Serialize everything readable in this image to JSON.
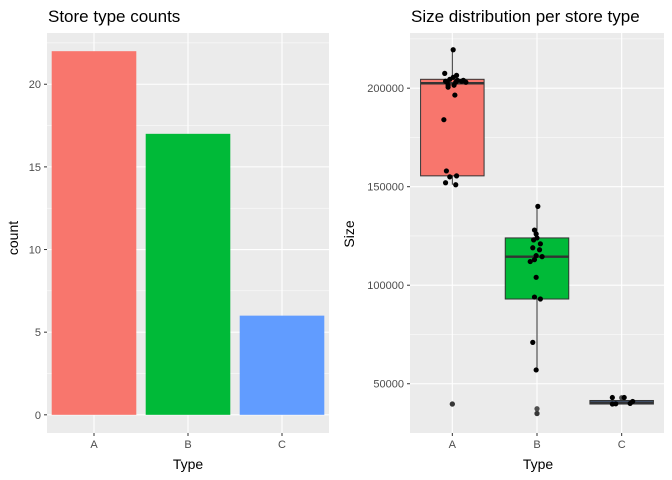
{
  "chart_data": [
    {
      "type": "bar",
      "title": "Store type counts",
      "xlabel": "Type",
      "ylabel": "count",
      "categories": [
        "A",
        "B",
        "C"
      ],
      "values": [
        22,
        17,
        6
      ],
      "colors": [
        "#F8766D",
        "#00BA38",
        "#619CFF"
      ],
      "ylim": [
        -1.1,
        23.1
      ],
      "yticks": [
        0,
        5,
        10,
        15,
        20
      ],
      "ytick_labels": [
        "0",
        "5",
        "10",
        "15",
        "20"
      ],
      "grid": true,
      "legend": "none"
    },
    {
      "type": "box",
      "title": "Size distribution per store type",
      "xlabel": "Type",
      "ylabel": "Size",
      "categories": [
        "A",
        "B",
        "C"
      ],
      "colors": [
        "#F8766D",
        "#00BA38",
        "#619CFF"
      ],
      "ylim": [
        25000,
        228000
      ],
      "yticks": [
        50000,
        100000,
        150000,
        200000
      ],
      "ytick_labels": [
        "50000",
        "100000",
        "150000",
        "200000"
      ],
      "grid": true,
      "legend": "none",
      "boxes": [
        {
          "category": "A",
          "q1": 155500,
          "median": 202500,
          "q3": 204500,
          "whisker_low": 151000,
          "whisker_high": 219500
        },
        {
          "category": "B",
          "q1": 93000,
          "median": 114500,
          "q3": 124000,
          "whisker_low": 57000,
          "whisker_high": 140000
        },
        {
          "category": "C",
          "q1": 39700,
          "median": 40500,
          "q3": 41500,
          "whisker_low": 39700,
          "whisker_high": 41500
        }
      ],
      "outliers": [
        {
          "category": "A",
          "values": [
            39700,
            39700
          ]
        },
        {
          "category": "B",
          "values": [
            34900,
            34900,
            37300
          ]
        },
        {
          "category": "C",
          "values": [
            42900
          ]
        }
      ],
      "points": [
        {
          "category": "A",
          "jitter": [
            0.01,
            -0.09,
            0.05,
            0.13,
            0.01,
            -0.03,
            0.06,
            -0.08,
            0.11,
            0.04,
            -0.06,
            0.16,
            0.02,
            -0.05,
            -0.05,
            0.03,
            -0.1,
            -0.07,
            0.05,
            -0.03,
            -0.08,
            0.04
          ],
          "values": [
            219500,
            207500,
            206500,
            204000,
            205500,
            204500,
            204000,
            203500,
            203500,
            203000,
            203000,
            203000,
            201500,
            201500,
            200500,
            196500,
            184000,
            158000,
            155500,
            155000,
            152000,
            151000
          ]
        },
        {
          "category": "B",
          "jitter": [
            0.01,
            -0.03,
            -0.01,
            0.0,
            -0.04,
            0.04,
            -0.05,
            0.03,
            -0.01,
            0.06,
            -0.03,
            -0.08,
            -0.01,
            -0.03,
            0.04,
            -0.05,
            -0.01
          ],
          "values": [
            140000,
            128000,
            126000,
            124000,
            123000,
            121000,
            119000,
            118000,
            115000,
            114500,
            113000,
            112000,
            104000,
            94000,
            93000,
            71000,
            57000
          ]
        },
        {
          "category": "C",
          "jitter": [
            -0.11,
            -0.07,
            -0.11,
            0.03,
            0.1,
            0.13
          ],
          "values": [
            39700,
            39800,
            43000,
            43000,
            40000,
            41000
          ]
        }
      ]
    }
  ]
}
